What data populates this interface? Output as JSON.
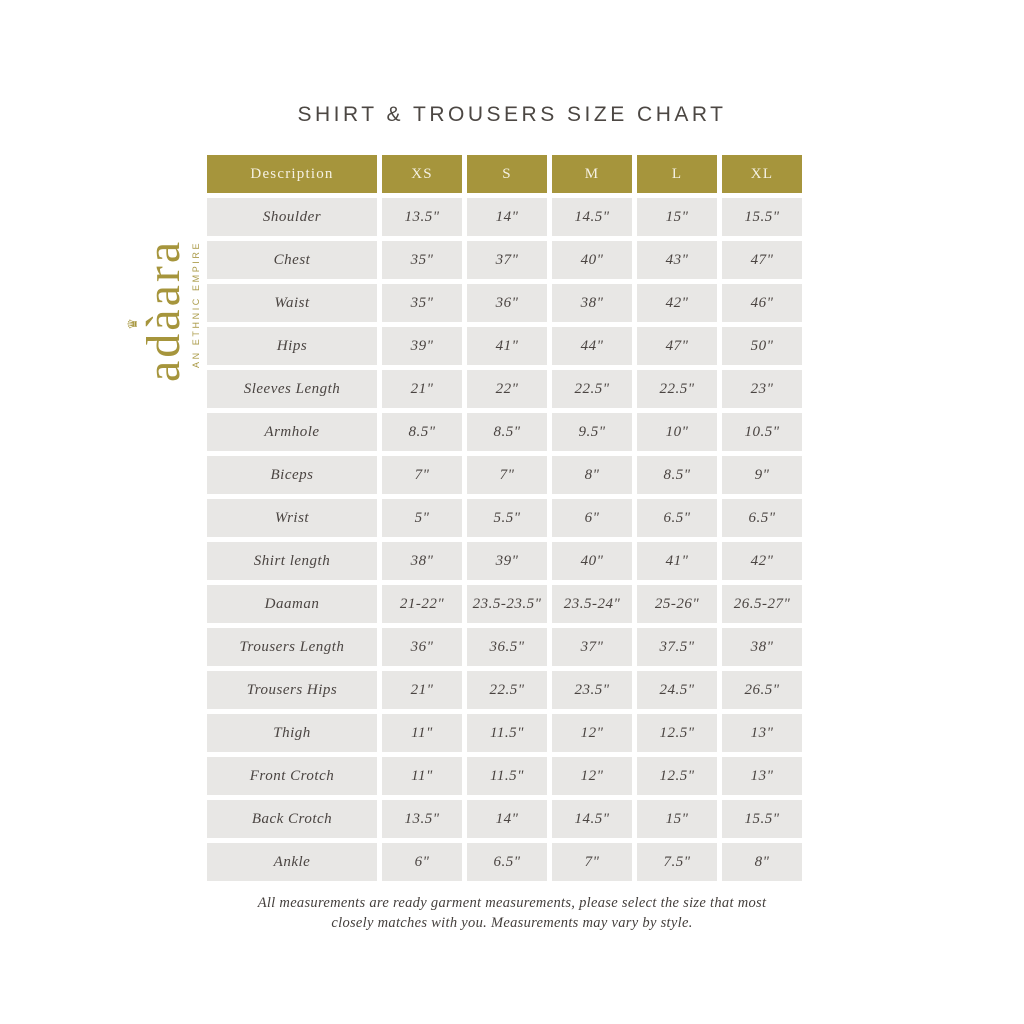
{
  "title": "SHIRT & TROUSERS SIZE CHART",
  "logo": {
    "brand_prefix": "ad",
    "brand_accent": "à",
    "brand_suffix": "ara",
    "crown_icon": "♛",
    "tagline": "AN ETHNIC EMPIRE"
  },
  "colors": {
    "accent_gold": "#a6953c",
    "cell_gray": "#e8e7e5",
    "header_text_cream": "#f5f1e3",
    "body_text": "#4a4441"
  },
  "table": {
    "headers": [
      "Description",
      "XS",
      "S",
      "M",
      "L",
      "XL"
    ],
    "rows": [
      {
        "label": "Shoulder",
        "values": [
          "13.5\"",
          "14\"",
          "14.5\"",
          "15\"",
          "15.5\""
        ]
      },
      {
        "label": "Chest",
        "values": [
          "35\"",
          "37\"",
          "40\"",
          "43\"",
          "47\""
        ]
      },
      {
        "label": "Waist",
        "values": [
          "35\"",
          "36\"",
          "38\"",
          "42\"",
          "46\""
        ]
      },
      {
        "label": "Hips",
        "values": [
          "39\"",
          "41\"",
          "44\"",
          "47\"",
          "50\""
        ]
      },
      {
        "label": "Sleeves Length",
        "values": [
          "21\"",
          "22\"",
          "22.5\"",
          "22.5\"",
          "23\""
        ]
      },
      {
        "label": "Armhole",
        "values": [
          "8.5\"",
          "8.5\"",
          "9.5\"",
          "10\"",
          "10.5\""
        ]
      },
      {
        "label": "Biceps",
        "values": [
          "7\"",
          "7\"",
          "8\"",
          "8.5\"",
          "9\""
        ]
      },
      {
        "label": "Wrist",
        "values": [
          "5\"",
          "5.5\"",
          "6\"",
          "6.5\"",
          "6.5\""
        ]
      },
      {
        "label": "Shirt length",
        "values": [
          "38\"",
          "39\"",
          "40\"",
          "41\"",
          "42\""
        ]
      },
      {
        "label": "Daaman",
        "values": [
          "21-22\"",
          "23.5-23.5\"",
          "23.5-24\"",
          "25-26\"",
          "26.5-27\""
        ]
      },
      {
        "label": "Trousers Length",
        "values": [
          "36\"",
          "36.5\"",
          "37\"",
          "37.5\"",
          "38\""
        ]
      },
      {
        "label": "Trousers Hips",
        "values": [
          "21\"",
          "22.5\"",
          "23.5\"",
          "24.5\"",
          "26.5\""
        ]
      },
      {
        "label": "Thigh",
        "values": [
          "11\"",
          "11.5\"",
          "12\"",
          "12.5\"",
          "13\""
        ]
      },
      {
        "label": "Front Crotch",
        "values": [
          "11\"",
          "11.5\"",
          "12\"",
          "12.5\"",
          "13\""
        ]
      },
      {
        "label": "Back Crotch",
        "values": [
          "13.5\"",
          "14\"",
          "14.5\"",
          "15\"",
          "15.5\""
        ]
      },
      {
        "label": "Ankle",
        "values": [
          "6\"",
          "6.5\"",
          "7\"",
          "7.5\"",
          "8\""
        ]
      }
    ]
  },
  "footer": {
    "line1": "All measurements are ready garment measurements, please select the size that most",
    "line2": "closely matches with you. Measurements may vary by style."
  }
}
